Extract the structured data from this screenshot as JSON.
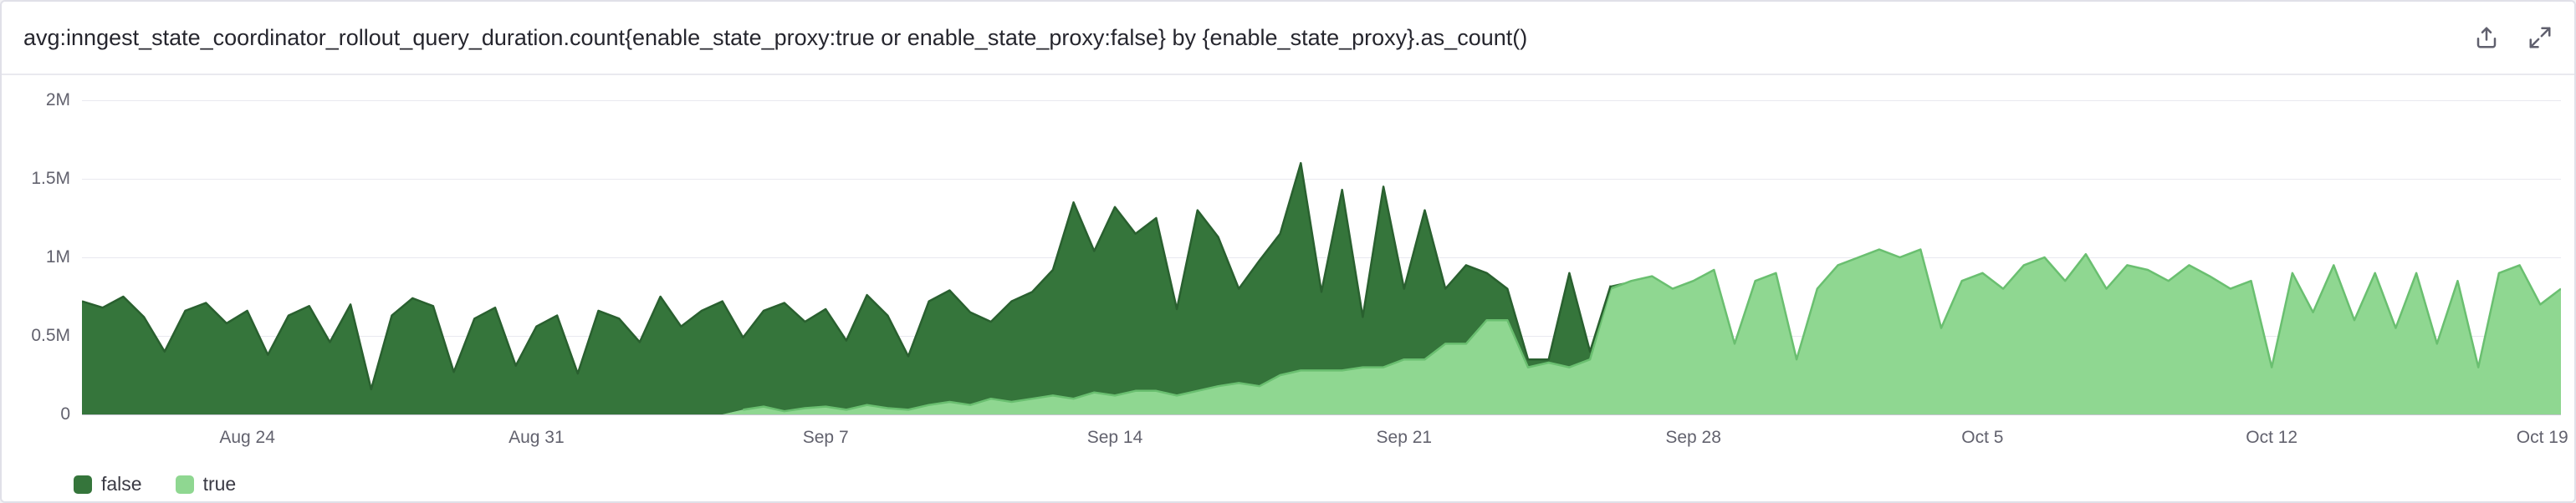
{
  "header": {
    "title": "avg:inngest_state_coordinator_rollout_query_duration.count{enable_state_proxy:true or enable_state_proxy:false} by {enable_state_proxy}.as_count()"
  },
  "chart_data": {
    "type": "area",
    "stacked": true,
    "title": "avg:inngest_state_coordinator_rollout_query_duration.count{enable_state_proxy:true or enable_state_proxy:false} by {enable_state_proxy}.as_count()",
    "x_start": "Aug 20",
    "x_end": "Oct 19",
    "points_per_day": 2,
    "x_ticks": [
      {
        "label": "Aug 24",
        "index": 8
      },
      {
        "label": "Aug 31",
        "index": 22
      },
      {
        "label": "Sep 7",
        "index": 36
      },
      {
        "label": "Sep 14",
        "index": 50
      },
      {
        "label": "Sep 21",
        "index": 64
      },
      {
        "label": "Sep 28",
        "index": 78
      },
      {
        "label": "Oct 5",
        "index": 92
      },
      {
        "label": "Oct 12",
        "index": 106
      },
      {
        "label": "Oct 19",
        "index": 120
      }
    ],
    "y_ticks": [
      {
        "label": "0",
        "value": 0
      },
      {
        "label": "0.5M",
        "value": 0.5
      },
      {
        "label": "1M",
        "value": 1
      },
      {
        "label": "1.5M",
        "value": 1.5
      },
      {
        "label": "2M",
        "value": 2
      }
    ],
    "ylim": [
      0,
      2
    ],
    "value_unit": "millions",
    "grid": true,
    "legend_position": "bottom-left",
    "stack_order": [
      "true",
      "false"
    ],
    "series": [
      {
        "name": "false",
        "fill": "#35753b",
        "stroke": "#29602f",
        "values": [
          0.72,
          0.68,
          0.75,
          0.62,
          0.4,
          0.66,
          0.71,
          0.58,
          0.66,
          0.38,
          0.63,
          0.69,
          0.46,
          0.7,
          0.16,
          0.63,
          0.74,
          0.69,
          0.27,
          0.61,
          0.68,
          0.31,
          0.56,
          0.63,
          0.26,
          0.66,
          0.61,
          0.46,
          0.75,
          0.56,
          0.66,
          0.72,
          0.46,
          0.61,
          0.69,
          0.55,
          0.62,
          0.44,
          0.7,
          0.59,
          0.34,
          0.66,
          0.71,
          0.59,
          0.49,
          0.64,
          0.68,
          0.8,
          1.25,
          0.9,
          1.2,
          1.0,
          1.1,
          0.55,
          1.15,
          0.95,
          0.6,
          0.8,
          0.9,
          1.32,
          0.5,
          1.15,
          0.32,
          1.15,
          0.45,
          0.95,
          0.35,
          0.5,
          0.3,
          0.2,
          0.05,
          0.02,
          0.6,
          0.05,
          0.02,
          0.0,
          0.0,
          0.0,
          0.0,
          0.0,
          0.0,
          0.0,
          0.0,
          0.0,
          0.0,
          0.0,
          0.0,
          0.0,
          0.0,
          0.0,
          0.0,
          0.0,
          0.0,
          0.0,
          0.0,
          0.0,
          0.0,
          0.0,
          0.0,
          0.0,
          0.0,
          0.0,
          0.0,
          0.0,
          0.0,
          0.0,
          0.0,
          0.0,
          0.0,
          0.0,
          0.0,
          0.0,
          0.0,
          0.0,
          0.0,
          0.0,
          0.0,
          0.0,
          0.0,
          0.0,
          0.0
        ]
      },
      {
        "name": "true",
        "fill": "#8fd791",
        "stroke": "#6abf70",
        "values": [
          0.0,
          0.0,
          0.0,
          0.0,
          0.0,
          0.0,
          0.0,
          0.0,
          0.0,
          0.0,
          0.0,
          0.0,
          0.0,
          0.0,
          0.0,
          0.0,
          0.0,
          0.0,
          0.0,
          0.0,
          0.0,
          0.0,
          0.0,
          0.0,
          0.0,
          0.0,
          0.0,
          0.0,
          0.0,
          0.0,
          0.0,
          0.0,
          0.03,
          0.05,
          0.02,
          0.04,
          0.05,
          0.03,
          0.06,
          0.04,
          0.03,
          0.06,
          0.08,
          0.06,
          0.1,
          0.08,
          0.1,
          0.12,
          0.1,
          0.14,
          0.12,
          0.15,
          0.15,
          0.12,
          0.15,
          0.18,
          0.2,
          0.18,
          0.25,
          0.28,
          0.28,
          0.28,
          0.3,
          0.3,
          0.35,
          0.35,
          0.45,
          0.45,
          0.6,
          0.6,
          0.3,
          0.33,
          0.3,
          0.35,
          0.8,
          0.85,
          0.88,
          0.8,
          0.85,
          0.92,
          0.45,
          0.85,
          0.9,
          0.35,
          0.8,
          0.95,
          1.0,
          1.05,
          1.0,
          1.05,
          0.55,
          0.85,
          0.9,
          0.8,
          0.95,
          1.0,
          0.85,
          1.02,
          0.8,
          0.95,
          0.92,
          0.85,
          0.95,
          0.88,
          0.8,
          0.85,
          0.3,
          0.9,
          0.65,
          0.95,
          0.6,
          0.9,
          0.55,
          0.9,
          0.45,
          0.85,
          0.3,
          0.9,
          0.95,
          0.7,
          0.8
        ]
      }
    ],
    "legend": [
      {
        "label": "false",
        "color": "#35753b"
      },
      {
        "label": "true",
        "color": "#8fd791"
      }
    ]
  },
  "colors": {
    "series_false": "#35753b",
    "series_true": "#8fd791",
    "gridline": "#e9e9ef",
    "axis_baseline": "#c6c6d0",
    "axis_text": "#62626e",
    "title_text": "#26262e"
  }
}
